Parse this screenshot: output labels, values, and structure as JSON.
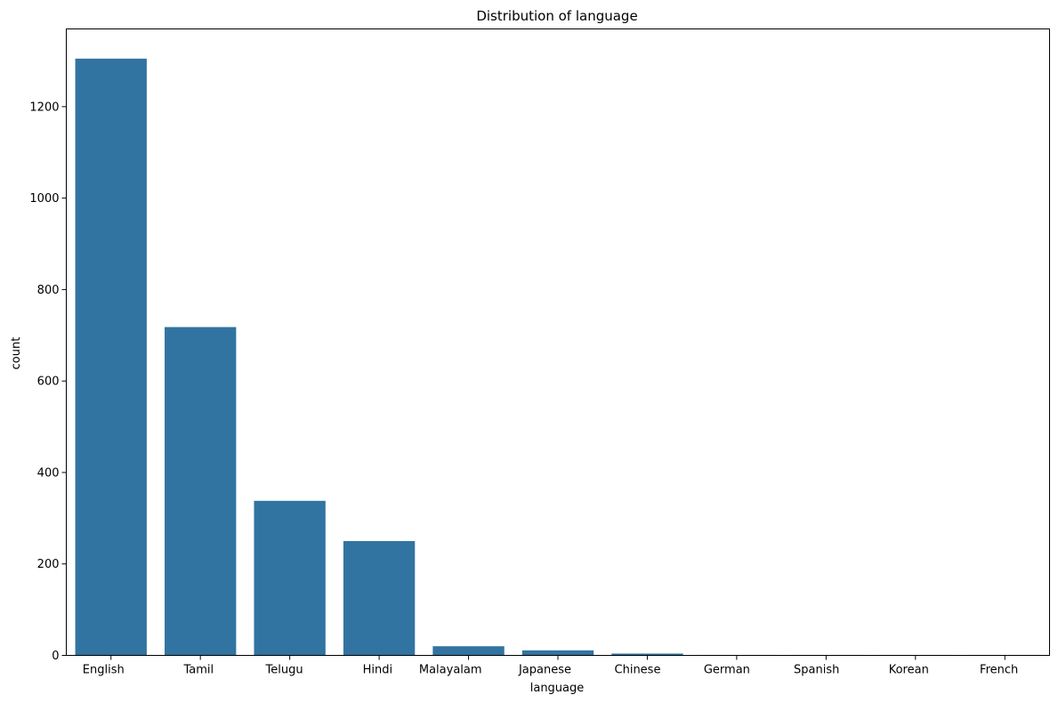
{
  "chart_data": {
    "type": "bar",
    "title": "Distribution of language",
    "xlabel": "language",
    "ylabel": "count",
    "categories": [
      "English",
      "Tamil",
      "Telugu",
      "Hindi",
      "Malayalam",
      "Japanese",
      "Chinese",
      "German",
      "Spanish",
      "Korean",
      "French"
    ],
    "values": [
      1305,
      718,
      338,
      250,
      20,
      11,
      4,
      1,
      1,
      1,
      1
    ],
    "ylim": [
      0,
      1370
    ],
    "yticks": [
      0,
      200,
      400,
      600,
      800,
      1000,
      1200
    ],
    "grid": false,
    "legend": "none",
    "bar_color": "#3274a1"
  }
}
